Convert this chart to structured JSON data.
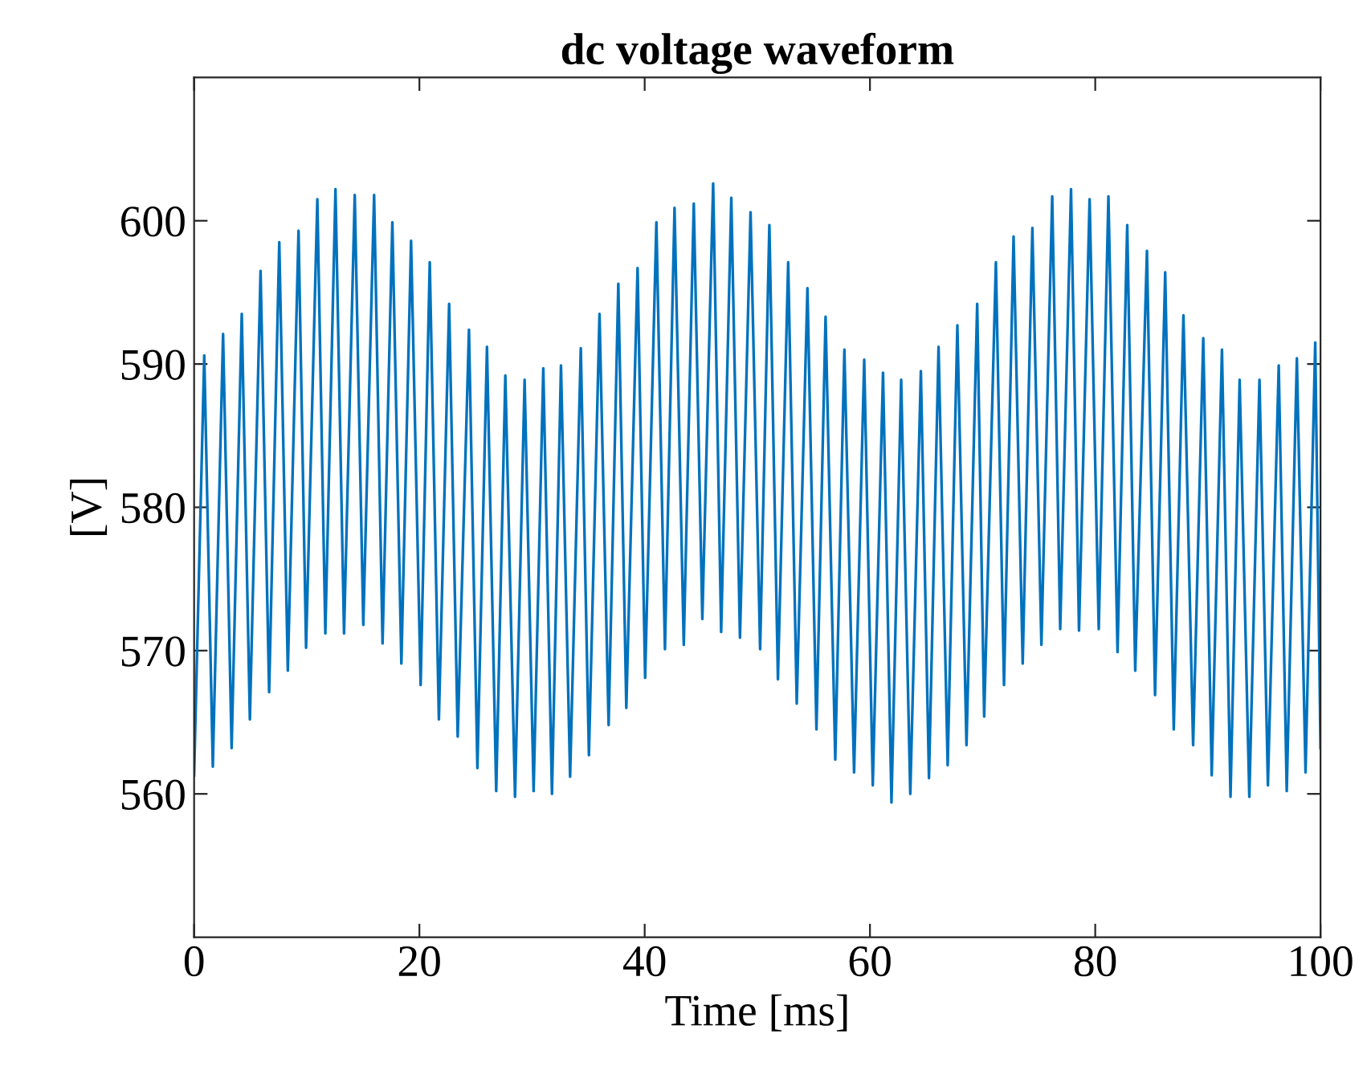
{
  "chart_data": {
    "type": "line",
    "title": "dc voltage waveform",
    "xlabel": "Time [ms]",
    "ylabel": "[V]",
    "x": [
      0,
      0.9,
      1.66,
      2.57,
      3.33,
      4.23,
      4.95,
      5.9,
      6.66,
      7.56,
      8.32,
      9.27,
      9.94,
      10.94,
      11.65,
      12.55,
      13.31,
      14.26,
      15.02,
      15.98,
      16.73,
      17.6,
      18.4,
      19.26,
      20.11,
      20.92,
      21.73,
      22.64,
      23.4,
      24.4,
      25.15,
      26.0,
      26.82,
      27.63,
      28.49,
      29.34,
      30.14,
      31.0,
      31.77,
      32.57,
      33.38,
      34.33,
      35.05,
      35.99,
      36.8,
      37.66,
      38.37,
      39.37,
      40.04,
      41.04,
      41.8,
      42.65,
      43.47,
      44.36,
      45.12,
      46.08,
      46.79,
      47.69,
      48.46,
      49.4,
      50.25,
      51.07,
      51.83,
      52.74,
      53.5,
      54.45,
      55.25,
      56.06,
      56.92,
      57.73,
      58.59,
      59.49,
      60.25,
      61.16,
      61.91,
      62.77,
      63.58,
      64.52,
      65.24,
      66.09,
      66.9,
      67.76,
      68.57,
      69.52,
      70.14,
      71.18,
      71.9,
      72.75,
      73.56,
      74.42,
      75.22,
      76.18,
      76.89,
      77.85,
      78.56,
      79.5,
      80.31,
      81.17,
      81.98,
      82.84,
      83.55,
      84.59,
      85.31,
      86.21,
      86.97,
      87.83,
      88.69,
      89.59,
      90.34,
      91.25,
      92.01,
      92.82,
      93.68,
      94.58,
      95.33,
      96.29,
      97.0,
      97.9,
      98.67,
      99.53,
      100
    ],
    "series": [
      {
        "color": "#0072bd",
        "values": [
          561.3,
          590.6,
          561.9,
          592.1,
          563.2,
          593.5,
          565.2,
          596.5,
          567.1,
          598.5,
          568.6,
          599.3,
          570.2,
          601.5,
          571.2,
          602.2,
          571.2,
          601.8,
          571.8,
          601.8,
          570.5,
          599.9,
          569.1,
          598.6,
          567.6,
          597.1,
          565.2,
          594.2,
          564.0,
          592.4,
          561.8,
          591.2,
          560.2,
          589.2,
          559.8,
          588.9,
          560.2,
          589.7,
          560.0,
          589.9,
          561.2,
          591.1,
          562.7,
          593.5,
          564.8,
          595.6,
          566.0,
          596.7,
          568.1,
          599.9,
          570.1,
          600.9,
          570.4,
          601.2,
          572.2,
          602.6,
          571.3,
          601.6,
          570.9,
          600.6,
          570.1,
          599.7,
          568.0,
          597.1,
          566.3,
          595.3,
          564.5,
          593.3,
          562.4,
          591.0,
          561.5,
          590.3,
          560.6,
          589.4,
          559.4,
          588.9,
          560.0,
          589.5,
          561.1,
          591.2,
          562.0,
          592.7,
          563.4,
          594.2,
          565.4,
          597.1,
          567.6,
          598.9,
          569.1,
          599.5,
          570.4,
          601.7,
          571.5,
          602.2,
          571.4,
          601.5,
          571.5,
          601.7,
          569.9,
          599.7,
          568.6,
          597.9,
          566.9,
          596.4,
          564.5,
          593.4,
          563.4,
          591.8,
          561.3,
          591.0,
          559.8,
          588.9,
          559.8,
          588.9,
          560.6,
          589.9,
          560.2,
          590.4,
          561.5,
          591.5,
          563.2
        ]
      }
    ],
    "xlim": [
      0,
      100
    ],
    "ylim": [
      550,
      610
    ],
    "xticks": [
      0,
      20,
      40,
      60,
      80,
      100
    ],
    "yticks": [
      560,
      570,
      580,
      590,
      600
    ]
  }
}
